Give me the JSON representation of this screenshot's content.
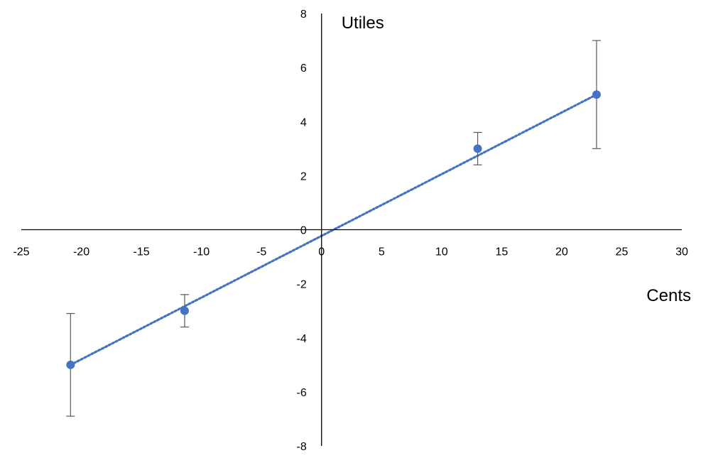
{
  "chart_data": {
    "type": "scatter",
    "title": "",
    "xlabel": "Cents",
    "ylabel": "Utiles",
    "xlim": [
      -25,
      30
    ],
    "ylim": [
      -8,
      8
    ],
    "x_ticks": [
      -25,
      -20,
      -15,
      -10,
      -5,
      0,
      5,
      10,
      15,
      20,
      25,
      30
    ],
    "y_ticks": [
      8,
      6,
      4,
      2,
      0,
      -2,
      -4,
      -6,
      -8
    ],
    "grid": false,
    "legend": "none",
    "series": [
      {
        "points": [
          {
            "x": -20.9,
            "y": -5.0,
            "err_low": -6.9,
            "err_high": -3.1
          },
          {
            "x": -11.4,
            "y": -3.0,
            "err_low": -3.6,
            "err_high": -2.4
          },
          {
            "x": 13.0,
            "y": 3.0,
            "err_low": 2.4,
            "err_high": 3.6
          },
          {
            "x": 22.9,
            "y": 5.0,
            "err_low": 3.0,
            "err_high": 7.0
          }
        ],
        "marker_color": "#4472C4"
      }
    ],
    "trendline": {
      "style": "dotted",
      "color": "#4472C4",
      "from": {
        "x": -20.9,
        "y": -5.0
      },
      "to": {
        "x": 22.9,
        "y": 5.0
      }
    },
    "error_bar_color": "#595959",
    "axis_color": "#000000"
  }
}
